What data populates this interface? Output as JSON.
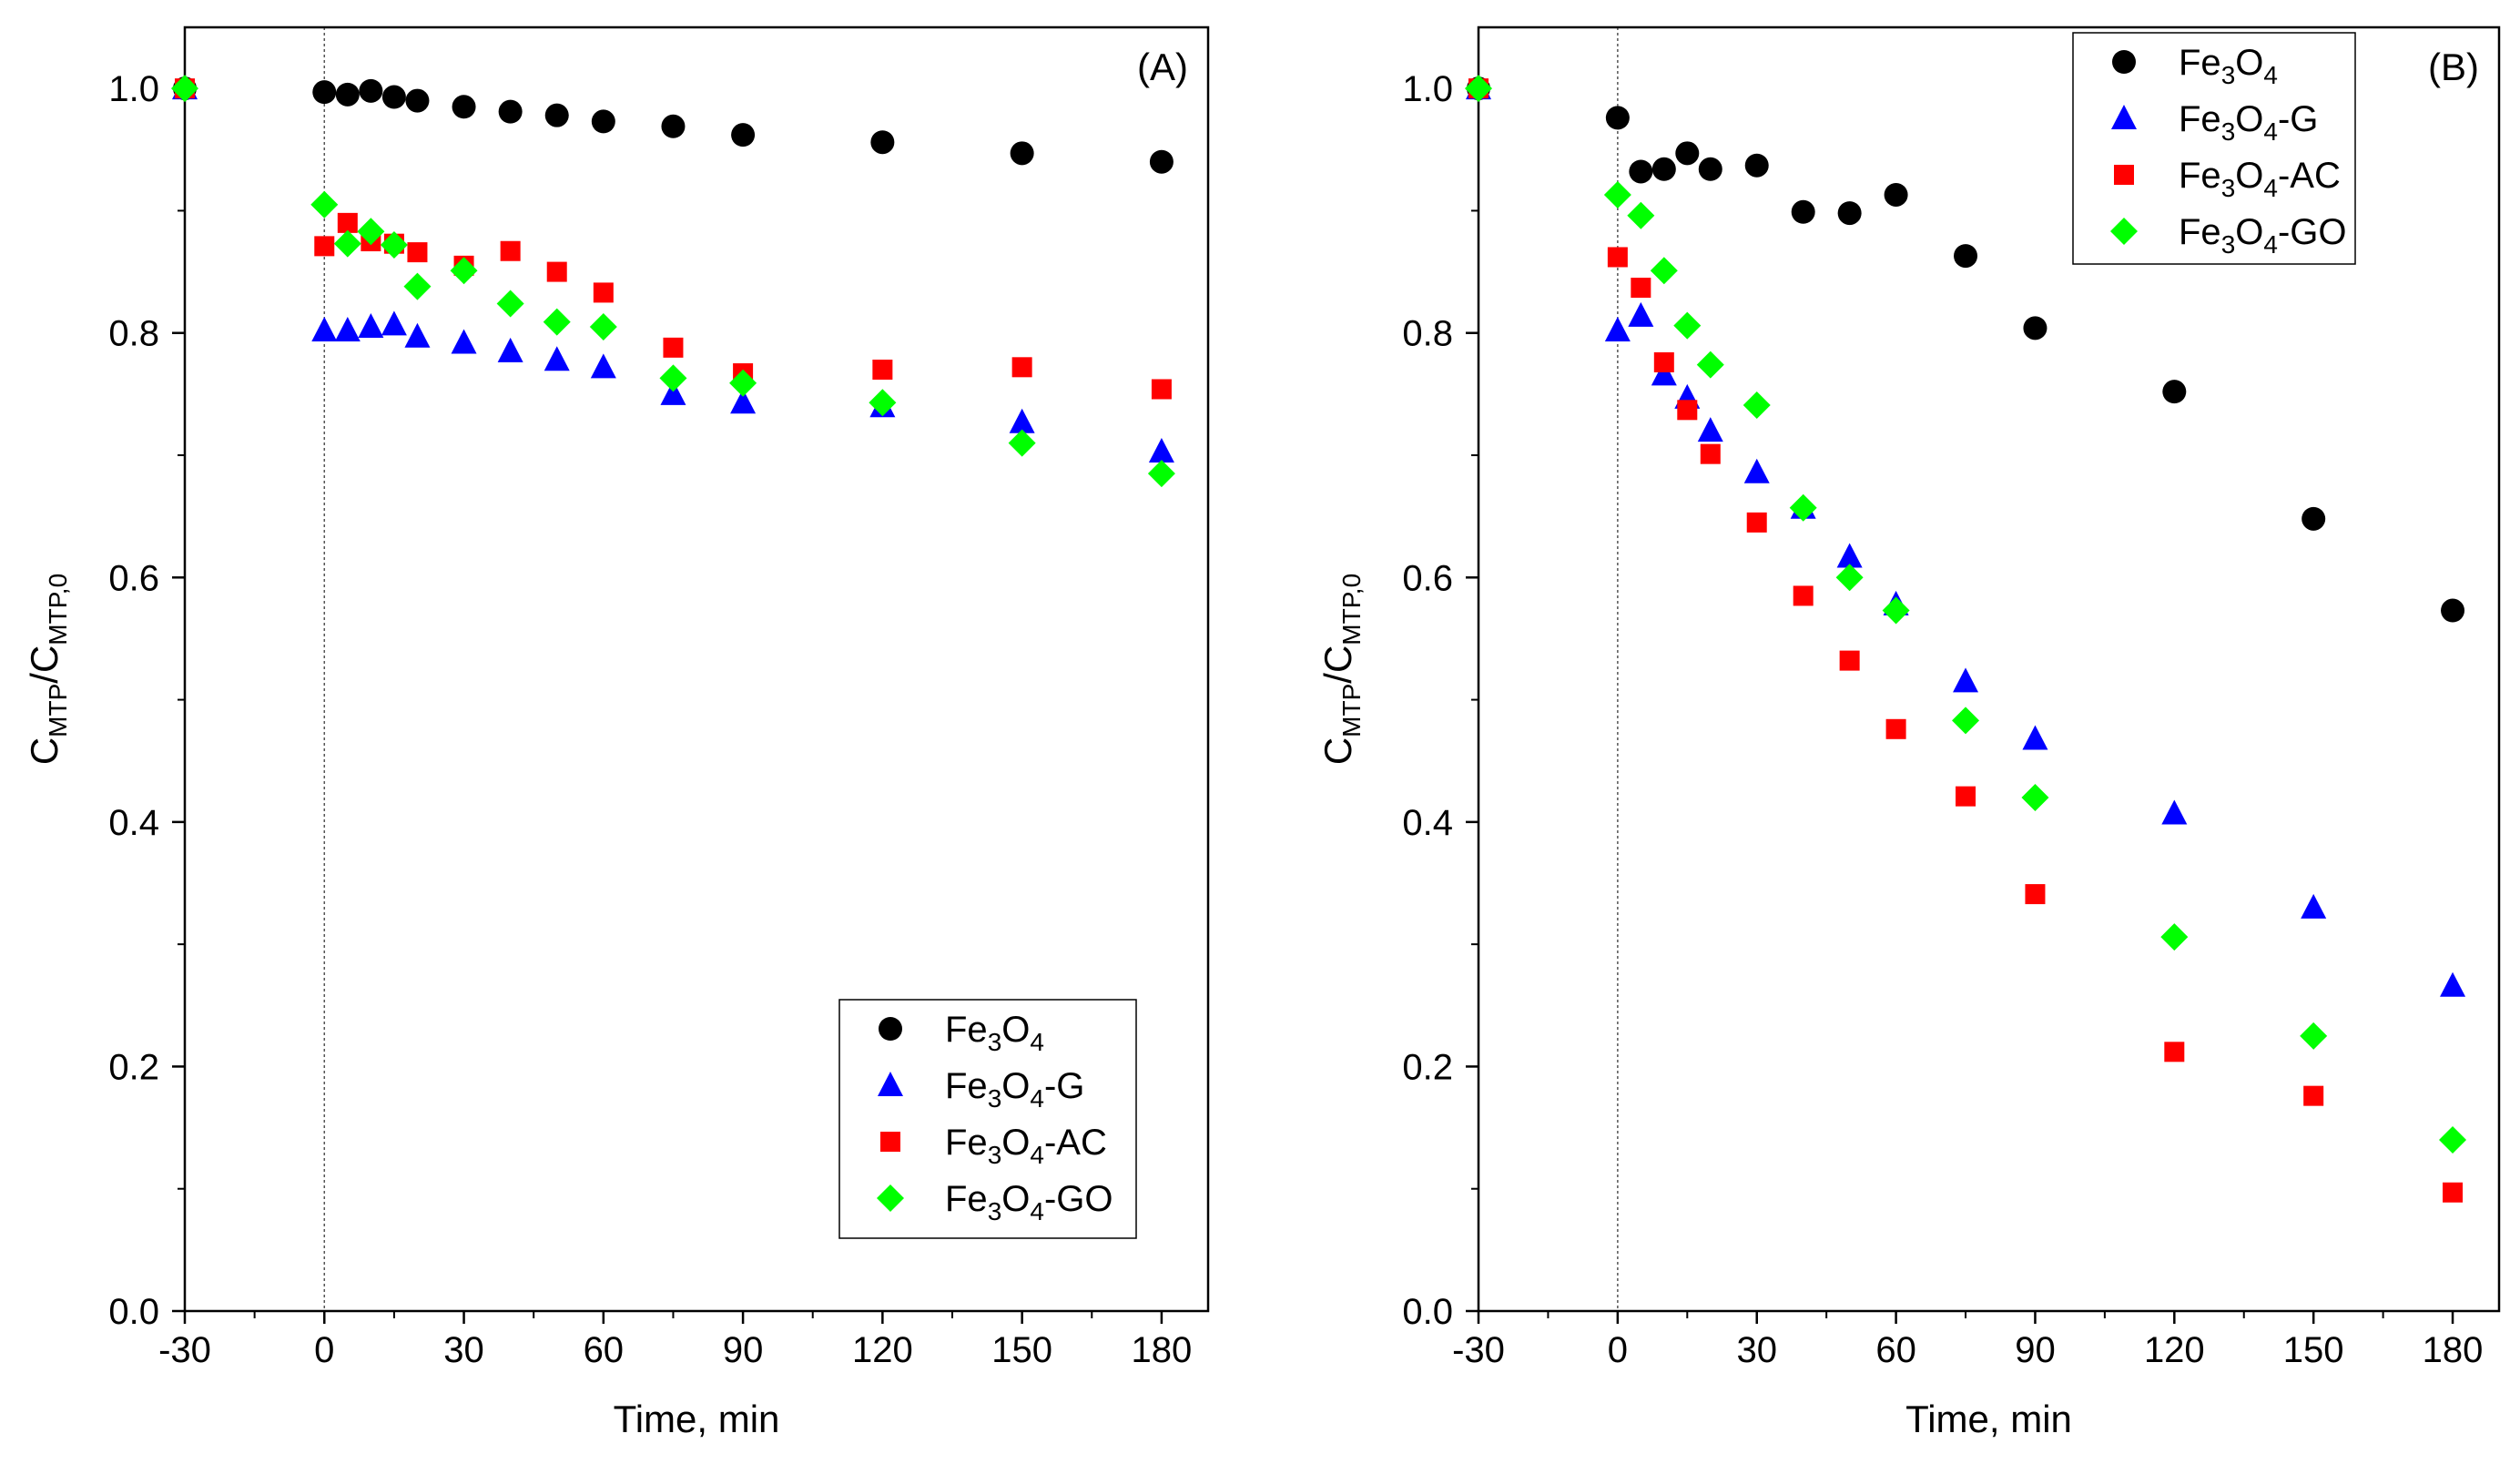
{
  "chart_data": [
    {
      "type": "scatter",
      "panel_label": "(A)",
      "xlabel": "Time, min",
      "ylabel": {
        "base": "C",
        "num_sub": "MTP",
        "slash": "/C",
        "den_sub": "MTP,0"
      },
      "xlim": [
        -30,
        190
      ],
      "ylim": [
        0,
        1.05
      ],
      "xticks": [
        -30,
        0,
        30,
        60,
        90,
        120,
        150,
        180
      ],
      "xtick_labels": [
        "-30",
        "0",
        "30",
        "60",
        "90",
        "120",
        "150",
        "180"
      ],
      "yticks": [
        0,
        0.2,
        0.4,
        0.6,
        0.8,
        1.0
      ],
      "ytick_labels": [
        "0.0",
        "0.2",
        "0.4",
        "0.6",
        "0.8",
        "1.0"
      ],
      "vline_x": 0,
      "legend_position": "bottom-right",
      "series": [
        {
          "name": "Fe3O4",
          "legend": {
            "pre": "Fe",
            "s1": "3",
            "mid": "O",
            "s2": "4",
            "suf": ""
          },
          "marker": "circle",
          "color": "#000000",
          "x": [
            -30,
            0,
            5,
            10,
            15,
            20,
            30,
            40,
            50,
            60,
            75,
            90,
            120,
            150,
            180
          ],
          "y": [
            1.0,
            0.997,
            0.995,
            0.998,
            0.993,
            0.99,
            0.985,
            0.981,
            0.978,
            0.973,
            0.969,
            0.962,
            0.956,
            0.947,
            0.94
          ]
        },
        {
          "name": "Fe3O4-G",
          "legend": {
            "pre": "Fe",
            "s1": "3",
            "mid": "O",
            "s2": "4",
            "suf": "-G"
          },
          "marker": "triangle",
          "color": "#0000ff",
          "x": [
            -30,
            0,
            5,
            10,
            15,
            20,
            30,
            40,
            50,
            60,
            75,
            90,
            120,
            150,
            180
          ],
          "y": [
            1.0,
            0.802,
            0.802,
            0.805,
            0.807,
            0.797,
            0.792,
            0.785,
            0.778,
            0.772,
            0.75,
            0.743,
            0.74,
            0.727,
            0.703
          ]
        },
        {
          "name": "Fe3O4-AC",
          "legend": {
            "pre": "Fe",
            "s1": "3",
            "mid": "O",
            "s2": "4",
            "suf": "-AC"
          },
          "marker": "square",
          "color": "#ff0000",
          "x": [
            -30,
            0,
            5,
            10,
            15,
            20,
            30,
            40,
            50,
            60,
            75,
            90,
            120,
            150,
            180
          ],
          "y": [
            1.0,
            0.871,
            0.89,
            0.875,
            0.873,
            0.866,
            0.855,
            0.867,
            0.85,
            0.833,
            0.788,
            0.767,
            0.77,
            0.772,
            0.754
          ]
        },
        {
          "name": "Fe3O4-GO",
          "legend": {
            "pre": "Fe",
            "s1": "3",
            "mid": "O",
            "s2": "4",
            "suf": "-GO"
          },
          "marker": "diamond",
          "color": "#00ff00",
          "x": [
            -30,
            0,
            5,
            10,
            15,
            20,
            30,
            40,
            50,
            60,
            75,
            90,
            120,
            150,
            180
          ],
          "y": [
            1.0,
            0.905,
            0.873,
            0.883,
            0.872,
            0.838,
            0.851,
            0.824,
            0.809,
            0.805,
            0.763,
            0.759,
            0.743,
            0.71,
            0.685
          ]
        }
      ]
    },
    {
      "type": "scatter",
      "panel_label": "(B)",
      "xlabel": "Time, min",
      "ylabel": {
        "base": "C",
        "num_sub": "MTP",
        "slash": "/C",
        "den_sub": "MTP,0"
      },
      "xlim": [
        -30,
        190
      ],
      "ylim": [
        0,
        1.05
      ],
      "xticks": [
        -30,
        0,
        30,
        60,
        90,
        120,
        150,
        180
      ],
      "xtick_labels": [
        "-30",
        "0",
        "30",
        "60",
        "90",
        "120",
        "150",
        "180"
      ],
      "yticks": [
        0,
        0.2,
        0.4,
        0.6,
        0.8,
        1.0
      ],
      "ytick_labels": [
        "0.0",
        "0.2",
        "0.4",
        "0.6",
        "0.8",
        "1.0"
      ],
      "vline_x": 0,
      "legend_position": "top-right",
      "series": [
        {
          "name": "Fe3O4",
          "legend": {
            "pre": "Fe",
            "s1": "3",
            "mid": "O",
            "s2": "4",
            "suf": ""
          },
          "marker": "circle",
          "color": "#000000",
          "x": [
            -30,
            0,
            5,
            10,
            15,
            20,
            30,
            40,
            50,
            60,
            75,
            90,
            120,
            150,
            180
          ],
          "y": [
            1.0,
            0.976,
            0.932,
            0.934,
            0.947,
            0.934,
            0.937,
            0.899,
            0.898,
            0.913,
            0.863,
            0.804,
            0.752,
            0.648,
            0.573
          ]
        },
        {
          "name": "Fe3O4-G",
          "legend": {
            "pre": "Fe",
            "s1": "3",
            "mid": "O",
            "s2": "4",
            "suf": "-G"
          },
          "marker": "triangle",
          "color": "#0000ff",
          "x": [
            -30,
            0,
            5,
            10,
            15,
            20,
            30,
            40,
            50,
            60,
            75,
            90,
            120,
            150,
            180
          ],
          "y": [
            1.0,
            0.802,
            0.814,
            0.766,
            0.747,
            0.72,
            0.686,
            0.657,
            0.617,
            0.578,
            0.515,
            0.468,
            0.407,
            0.33,
            0.266
          ]
        },
        {
          "name": "Fe3O4-AC",
          "legend": {
            "pre": "Fe",
            "s1": "3",
            "mid": "O",
            "s2": "4",
            "suf": "-AC"
          },
          "marker": "square",
          "color": "#ff0000",
          "x": [
            -30,
            0,
            5,
            10,
            15,
            20,
            30,
            40,
            50,
            60,
            75,
            90,
            120,
            150,
            180
          ],
          "y": [
            1.0,
            0.862,
            0.837,
            0.776,
            0.737,
            0.701,
            0.645,
            0.585,
            0.532,
            0.476,
            0.421,
            0.341,
            0.212,
            0.176,
            0.097
          ]
        },
        {
          "name": "Fe3O4-GO",
          "legend": {
            "pre": "Fe",
            "s1": "3",
            "mid": "O",
            "s2": "4",
            "suf": "-GO"
          },
          "marker": "diamond",
          "color": "#00ff00",
          "x": [
            -30,
            0,
            5,
            10,
            15,
            20,
            30,
            40,
            50,
            60,
            75,
            90,
            120,
            150,
            180
          ],
          "y": [
            1.0,
            0.913,
            0.896,
            0.851,
            0.806,
            0.774,
            0.741,
            0.657,
            0.6,
            0.573,
            0.483,
            0.42,
            0.306,
            0.225,
            0.14
          ]
        }
      ]
    }
  ]
}
